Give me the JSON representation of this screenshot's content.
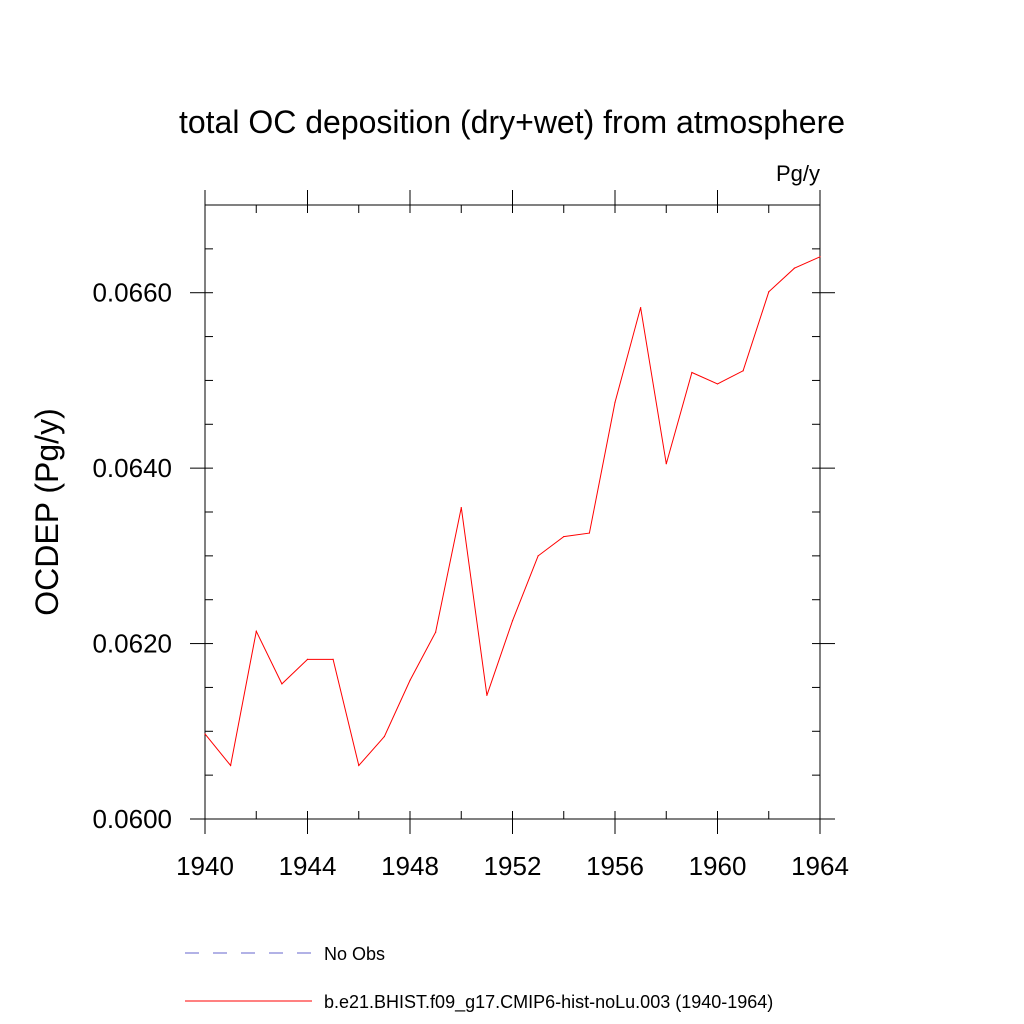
{
  "chart_data": {
    "type": "line",
    "title": "total OC deposition (dry+wet) from atmosphere",
    "units_label": "Pg/y",
    "ylabel": "OCDEP  (Pg/y)",
    "xlabel": "",
    "xlim": [
      1940,
      1964
    ],
    "ylim": [
      0.06,
      0.067
    ],
    "x_ticks": [
      1940,
      1944,
      1948,
      1952,
      1956,
      1960,
      1964
    ],
    "x_tick_labels": [
      "1940",
      "1944",
      "1948",
      "1952",
      "1956",
      "1960",
      "1964"
    ],
    "y_ticks": [
      0.06,
      0.062,
      0.064,
      0.066
    ],
    "y_tick_labels": [
      "0.0600",
      "0.0620",
      "0.0640",
      "0.0660"
    ],
    "grid": false,
    "legend_position": "bottom",
    "series": [
      {
        "name": "b.e21.BHIST.f09_g17.CMIP6-hist-noLu.003 (1940-1964)",
        "color": "#ff0000",
        "style": "solid",
        "x": [
          1940,
          1941,
          1942,
          1943,
          1944,
          1945,
          1946,
          1947,
          1948,
          1949,
          1950,
          1951,
          1952,
          1953,
          1954,
          1955,
          1956,
          1957,
          1958,
          1959,
          1960,
          1961,
          1962,
          1963,
          1964
        ],
        "values": [
          0.06097,
          0.06061,
          0.06214,
          0.06154,
          0.06182,
          0.06182,
          0.06061,
          0.06094,
          0.06158,
          0.06213,
          0.06355,
          0.06141,
          0.06226,
          0.063,
          0.06322,
          0.06326,
          0.06475,
          0.06583,
          0.06405,
          0.06509,
          0.06496,
          0.06511,
          0.06601,
          0.06628,
          0.06641
        ]
      }
    ],
    "legend": [
      {
        "label": "No Obs",
        "color": "#6666cc",
        "style": "dashed"
      },
      {
        "label": "b.e21.BHIST.f09_g17.CMIP6-hist-noLu.003 (1940-1964)",
        "color": "#ff0000",
        "style": "solid"
      }
    ]
  }
}
